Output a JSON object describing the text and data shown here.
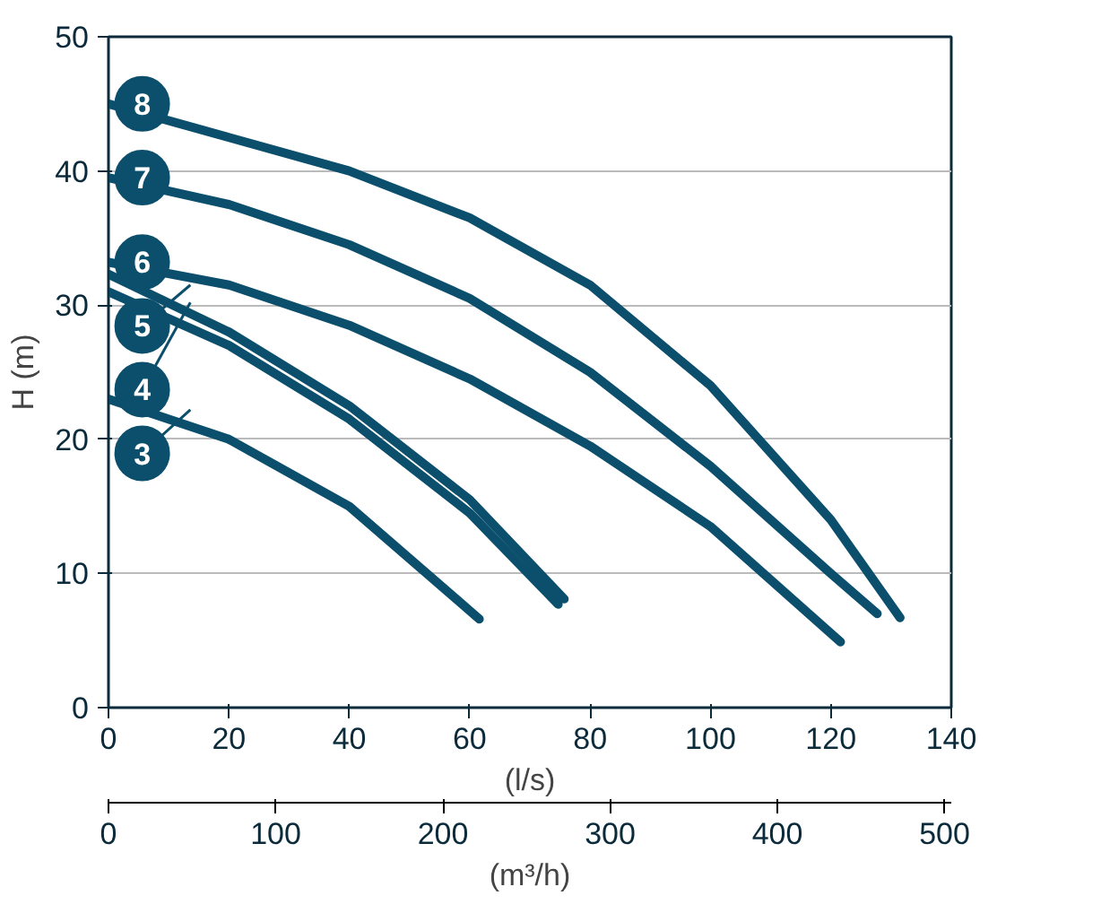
{
  "chart_data": {
    "type": "line",
    "ylabel": "H (m)",
    "xlabel": "(l/s)",
    "x2label": "(m³/h)",
    "xlim": [
      0,
      140
    ],
    "xticks": [
      0,
      20,
      40,
      60,
      80,
      100,
      120,
      140
    ],
    "x2lim": [
      0,
      504
    ],
    "x2ticks": [
      0,
      100,
      200,
      300,
      400,
      500
    ],
    "ylim": [
      0,
      50
    ],
    "yticks": [
      0,
      10,
      20,
      30,
      40,
      50
    ],
    "grid": "y",
    "legend": "left",
    "marker": "none",
    "line_style": "solid",
    "series": [
      {
        "name": "8",
        "color": "#0b4f6c",
        "x": [
          0,
          20,
          40,
          60,
          80,
          100,
          120,
          131.5
        ],
        "values": [
          45,
          42.5,
          40,
          36.5,
          31.5,
          24,
          14,
          6.7
        ]
      },
      {
        "name": "7",
        "color": "#0b4f6c",
        "x": [
          0,
          20,
          40,
          60,
          80,
          100,
          120,
          127.7
        ],
        "values": [
          39.5,
          37.5,
          34.5,
          30.5,
          25,
          18,
          10,
          7
        ]
      },
      {
        "name": "6",
        "color": "#0b4f6c",
        "x": [
          0,
          20,
          40,
          60,
          80,
          100,
          121.6
        ],
        "values": [
          33.2,
          31.5,
          28.5,
          24.5,
          19.5,
          13.5,
          4.9
        ]
      },
      {
        "name": "5",
        "color": "#0b4f6c",
        "x": [
          0,
          20,
          40,
          60,
          75.7
        ],
        "values": [
          32.3,
          28,
          22.5,
          15.5,
          8.1
        ]
      },
      {
        "name": "4",
        "color": "#0b4f6c",
        "x": [
          0,
          20,
          40,
          60,
          74.7
        ],
        "values": [
          31,
          27,
          21.5,
          14.5,
          7.7
        ]
      },
      {
        "name": "3",
        "color": "#0b4f6c",
        "x": [
          0,
          20,
          40,
          61.6
        ],
        "values": [
          23,
          20,
          15,
          6.6
        ]
      }
    ]
  }
}
